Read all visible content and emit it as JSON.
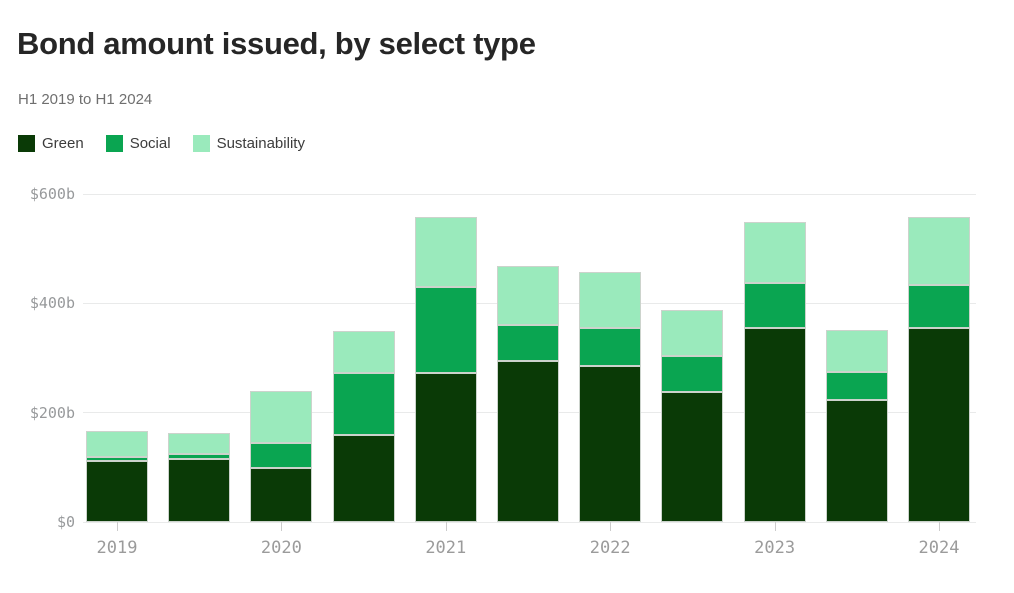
{
  "header": {
    "title": "Bond amount issued, by select type",
    "subtitle": "H1 2019 to H1 2024"
  },
  "legend": {
    "items": [
      {
        "label": "Green",
        "color": "#0a3a06"
      },
      {
        "label": "Social",
        "color": "#0aa551"
      },
      {
        "label": "Sustainability",
        "color": "#9aeabc"
      }
    ]
  },
  "chart_data": {
    "type": "bar",
    "stacked": true,
    "title": "Bond amount issued, by select type",
    "subtitle": "H1 2019 to H1 2024",
    "unit": "billions of dollars",
    "categories": [
      "2019 H1",
      "2019 H2",
      "2020 H1",
      "2020 H2",
      "2021 H1",
      "2021 H2",
      "2022 H1",
      "2022 H2",
      "2023 H1",
      "2023 H2",
      "2024 H1"
    ],
    "series": [
      {
        "name": "Green",
        "color": "#0a3a06",
        "values": [
          111,
          116,
          98,
          160,
          273,
          295,
          285,
          238,
          354,
          223,
          355
        ]
      },
      {
        "name": "Social",
        "color": "#0aa551",
        "values": [
          7,
          8,
          46,
          112,
          157,
          65,
          69,
          65,
          83,
          51,
          79
        ]
      },
      {
        "name": "Sustainability",
        "color": "#9aeabc",
        "values": [
          49,
          38,
          95,
          78,
          128,
          108,
          104,
          84,
          112,
          77,
          124
        ]
      }
    ],
    "totals": [
      167,
      162,
      239,
      350,
      558,
      468,
      458,
      387,
      549,
      351,
      558
    ],
    "y_ticks": [
      {
        "value": 0,
        "label": "$0"
      },
      {
        "value": 200,
        "label": "$200b"
      },
      {
        "value": 400,
        "label": "$400b"
      },
      {
        "value": 600,
        "label": "$600b"
      }
    ],
    "x_ticks": [
      {
        "label": "2019",
        "bar_index": 0
      },
      {
        "label": "2020",
        "bar_index": 2
      },
      {
        "label": "2021",
        "bar_index": 4
      },
      {
        "label": "2022",
        "bar_index": 6
      },
      {
        "label": "2023",
        "bar_index": 8
      },
      {
        "label": "2024",
        "bar_index": 10
      }
    ],
    "ylim": [
      0,
      600
    ],
    "grid": "horizontal",
    "legend_position": "top-left"
  }
}
